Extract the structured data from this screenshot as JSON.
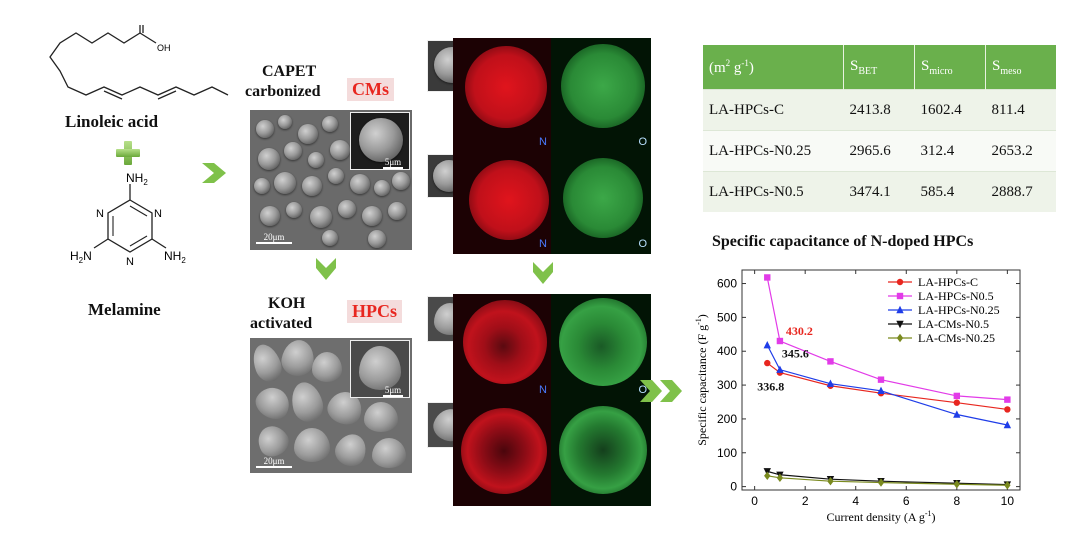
{
  "left": {
    "linoleic_label": "Linoleic acid",
    "melamine_label": "Melamine",
    "acid_oh": "OH",
    "acid_o": "O",
    "nh2_top": "NH",
    "nh2_left": "H",
    "nh2_right": "NH",
    "sub2": "2",
    "ring_n": "N"
  },
  "middle": {
    "capet_line1": "CAPET",
    "capet_line2": "carbonized",
    "cms_tag": "CMs",
    "koh_line1": "KOH",
    "koh_line2": "activated",
    "hpcs_tag": "HPCs",
    "scale_20": "20μm",
    "scale_small": "5μm",
    "map_n": "N",
    "map_o": "O"
  },
  "table": {
    "unit_header": "(m",
    "unit_sup": "2",
    "unit_rest": " g",
    "unit_sup2": "-1",
    "unit_close": ")",
    "col_sbet": "S",
    "col_sbet_sub": "BET",
    "col_smicro": "S",
    "col_smicro_sub": "micro",
    "col_smeso": "S",
    "col_smeso_sub": "meso",
    "rows": [
      {
        "name": "LA-HPCs-C",
        "sbet": "2413.8",
        "smicro": "1602.4",
        "smeso": "811.4"
      },
      {
        "name": "LA-HPCs-N0.25",
        "sbet": "2965.6",
        "smicro": "312.4",
        "smeso": "2653.2"
      },
      {
        "name": "LA-HPCs-N0.5",
        "sbet": "3474.1",
        "smicro": "585.4",
        "smeso": "2888.7"
      }
    ]
  },
  "chart_data": {
    "type": "line",
    "title": "Specific capacitance of N-doped HPCs",
    "xlabel": "Current density (A g",
    "xlabel_sup": "-1",
    "xlabel_close": ")",
    "ylabel": "Specific capacitance (F g",
    "ylabel_sup": "-1",
    "ylabel_close": ")",
    "xlim": [
      -0.5,
      10.5
    ],
    "ylim": [
      -10,
      640
    ],
    "xticks": [
      0,
      2,
      4,
      6,
      8,
      10
    ],
    "yticks": [
      0,
      100,
      200,
      300,
      400,
      500,
      600
    ],
    "legend_position": "top-right",
    "x": [
      0.5,
      1,
      3,
      5,
      8,
      10
    ],
    "series": [
      {
        "name": "LA-HPCs-C",
        "color": "#e8261f",
        "marker": "circle",
        "values": [
          365,
          336.8,
          298,
          276,
          248,
          228
        ]
      },
      {
        "name": "LA-HPCs-N0.5",
        "color": "#e23be8",
        "marker": "square",
        "values": [
          618,
          430.2,
          370,
          316,
          268,
          257
        ]
      },
      {
        "name": "LA-HPCs-N0.25",
        "color": "#1f3de8",
        "marker": "triangle-up",
        "values": [
          418,
          345.6,
          304,
          283,
          213,
          182
        ]
      },
      {
        "name": "LA-CMs-N0.5",
        "color": "#111111",
        "marker": "triangle-down",
        "values": [
          45,
          35,
          22,
          16,
          10,
          6
        ]
      },
      {
        "name": "LA-CMs-N0.25",
        "color": "#7a8a1f",
        "marker": "diamond",
        "values": [
          32,
          26,
          16,
          12,
          7,
          4
        ]
      }
    ],
    "annotations": [
      {
        "text": "430.2",
        "color": "#e8261f"
      },
      {
        "text": "345.6",
        "color": "#111111"
      },
      {
        "text": "336.8",
        "color": "#111111"
      }
    ]
  }
}
